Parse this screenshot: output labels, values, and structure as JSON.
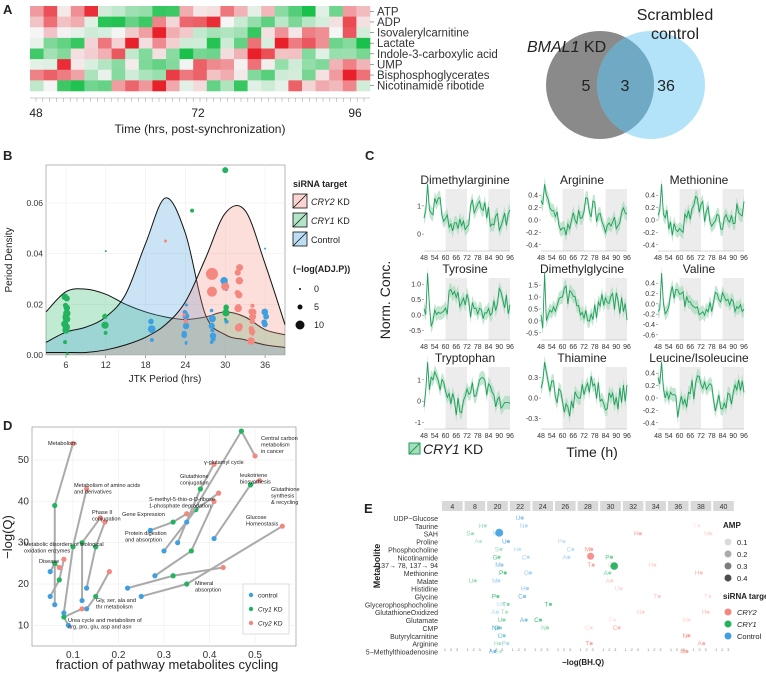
{
  "panelA": {
    "label": "A",
    "metabolites": [
      "ATP",
      "ADP",
      "Isovalerylcarnitine",
      "Lactate",
      "Indole-3-carboxylic acid",
      "UMP",
      "Bisphosphoglycerates",
      "Nicotinamide ribotide"
    ],
    "ticks": [
      "48",
      "72",
      "96"
    ],
    "xlabel": "Time (hrs, post-synchronization)",
    "colors": {
      "up": "#e8202a",
      "mid": "#f5f5f5",
      "down": "#19c04a"
    }
  },
  "venn": {
    "left_title": "BMAL1",
    "left_suffix": " KD",
    "right_title_1": "Scrambled",
    "right_title_2": "control",
    "left_only": "5",
    "overlap": "3",
    "right_only": "36",
    "left_color": "#8a8a8a",
    "right_color": "#a6def7"
  },
  "panelB": {
    "label": "B",
    "chart_data": {
      "type": "scatter",
      "xlabel": "JTK Period (hrs)",
      "ylabel": "Period Density",
      "x_ticks": [
        "6",
        "12",
        "18",
        "24",
        "30",
        "36"
      ],
      "y_ticks": [
        "0.00",
        "0.02",
        "0.04",
        "0.06"
      ],
      "xlim": [
        3,
        39
      ],
      "ylim": [
        0,
        0.075
      ],
      "legend_title": "siRNA target",
      "legend": [
        {
          "gene": "CRY2",
          "suffix": " KD",
          "color": "#f4877f"
        },
        {
          "gene": "CRY1",
          "suffix": "  KD",
          "color": "#22b35e"
        },
        {
          "gene": "",
          "suffix": "Control",
          "color": "#3f9fe0"
        }
      ],
      "size_title": "(−log(ADJ.P))",
      "size_labels": [
        "0",
        "5",
        "10"
      ],
      "density_series": [
        {
          "name": "CRY1",
          "color": "#22b35e",
          "x": [
            3,
            6,
            9,
            12,
            15,
            18,
            21,
            24,
            27,
            30,
            33,
            36,
            39
          ],
          "y": [
            0.017,
            0.025,
            0.026,
            0.024,
            0.02,
            0.017,
            0.015,
            0.014,
            0.015,
            0.017,
            0.015,
            0.01,
            0.008
          ]
        },
        {
          "name": "Control",
          "color": "#3f9fe0",
          "x": [
            3,
            6,
            9,
            12,
            15,
            18,
            21,
            24,
            27,
            30,
            33,
            36,
            39
          ],
          "y": [
            0.005,
            0.009,
            0.011,
            0.015,
            0.024,
            0.044,
            0.062,
            0.048,
            0.016,
            0.008,
            0.006,
            0.004,
            0.003
          ]
        },
        {
          "name": "CRY2",
          "color": "#f4877f",
          "x": [
            3,
            6,
            9,
            12,
            15,
            18,
            21,
            24,
            27,
            30,
            33,
            36,
            39
          ],
          "y": [
            0.001,
            0.001,
            0.001,
            0.002,
            0.004,
            0.007,
            0.012,
            0.021,
            0.038,
            0.056,
            0.057,
            0.036,
            0.012
          ]
        }
      ]
    }
  },
  "panelC": {
    "label": "C",
    "ylabel": "Norm. Conc.",
    "xlabel": "Time (h)",
    "legend_gene": "CRY1",
    "legend_suffix": " KD",
    "x_ticks": [
      "48",
      "54",
      "60",
      "66",
      "72",
      "78",
      "84",
      "90",
      "96"
    ],
    "line_color": "#1e9e5a",
    "ribbon_color": "#a8dcbc",
    "plots": [
      {
        "title": "Dimethylarginine",
        "yticks": [
          "1",
          "0"
        ],
        "ylim": [
          -0.6,
          1.6
        ],
        "tickvals": [
          1,
          0
        ]
      },
      {
        "title": "Arginine",
        "yticks": [
          "0.4",
          "0.2",
          "0.0",
          "-0.2",
          "-0.4"
        ],
        "ylim": [
          -0.5,
          0.5
        ],
        "tickvals": [
          0.4,
          0.2,
          0,
          -0.2,
          -0.4
        ]
      },
      {
        "title": "Methionine",
        "yticks": [
          "0.4",
          "0.2",
          "0.0",
          "-0.2",
          "-0.4"
        ],
        "ylim": [
          -0.5,
          0.5
        ],
        "tickvals": [
          0.4,
          0.2,
          0,
          -0.2,
          -0.4
        ]
      },
      {
        "title": "Tyrosine",
        "yticks": [
          "1.0",
          "0.5",
          "0.0",
          "-0.5"
        ],
        "ylim": [
          -0.8,
          1.2
        ],
        "tickvals": [
          1,
          0.5,
          0,
          -0.5
        ]
      },
      {
        "title": "Dimethylglycine",
        "yticks": [
          "1.5",
          "1.0",
          "0.5",
          "0.0",
          "-0.5"
        ],
        "ylim": [
          -0.8,
          1.8
        ],
        "tickvals": [
          1.5,
          1,
          0.5,
          0,
          -0.5
        ]
      },
      {
        "title": "Valine",
        "yticks": [
          "0.4",
          "0.2",
          "0.0",
          "-0.2",
          "-0.4",
          "-0.6"
        ],
        "ylim": [
          -0.7,
          0.5
        ],
        "tickvals": [
          0.4,
          0.2,
          0,
          -0.2,
          -0.4,
          -0.6
        ]
      },
      {
        "title": "Tryptophan",
        "yticks": [
          "1",
          "0",
          "-1"
        ],
        "ylim": [
          -1.3,
          1.6
        ],
        "tickvals": [
          1,
          0,
          -1
        ]
      },
      {
        "title": "Thiamine",
        "yticks": [
          "0.3",
          "0.0",
          "-0.3"
        ],
        "ylim": [
          -0.45,
          0.45
        ],
        "tickvals": [
          0.3,
          0,
          -0.3
        ]
      },
      {
        "title": "Leucine/Isoleucine",
        "yticks": [
          "0.4",
          "0.2",
          "0.0",
          "-0.2",
          "-0.4"
        ],
        "ylim": [
          -0.5,
          0.5
        ],
        "tickvals": [
          0.4,
          0.2,
          0,
          -0.2,
          -0.4
        ]
      }
    ]
  },
  "panelD": {
    "label": "D",
    "chart_data": {
      "type": "scatter",
      "xlabel": "fraction of pathway metabolites cycling",
      "ylabel": "−log(Q)",
      "x_ticks": [
        "0.1",
        "0.2",
        "0.3",
        "0.4",
        "0.5"
      ],
      "y_ticks": [
        "10",
        "20",
        "30",
        "40",
        "50"
      ],
      "xlim": [
        0.01,
        0.59
      ],
      "ylim": [
        5,
        58
      ],
      "legend": [
        {
          "name": "control",
          "color": "#3f9fe0",
          "italic": false
        },
        {
          "name": "Cry1",
          "suffix": " KD",
          "color": "#22b35e",
          "italic": true
        },
        {
          "name": "Cry2",
          "suffix": " KD",
          "color": "#f4877f",
          "italic": true
        }
      ],
      "annotations": [
        "Metabolism",
        "Metabolism of amino acids and derivatives",
        "Phase II conjugation",
        "Gene Expression",
        "Protein digestion and absorption",
        "Metabolic disorders of biological oxidation enzymes",
        "Disease",
        "Gly, ser, ala and thr metabolism",
        "Urea cycle and metabolism of arg, pro, glu, asp and asn",
        "γ-glutamyl cycle",
        "Glutathione conjugation",
        "S-methyl-5-thio-α-D-ribose 1-phosphate degradation",
        "Mineral absorption",
        "Central carbon metabolism in cancer",
        "leukotriene biosynthesis",
        "Glutathione synthesis & recycling",
        "Glucose Homeostasis"
      ],
      "groups": [
        {
          "label_index": 0,
          "points": [
            {
              "x": 0.06,
              "y": 15,
              "g": "control"
            },
            {
              "x": 0.06,
              "y": 39,
              "g": "Cry1"
            },
            {
              "x": 0.1,
              "y": 54,
              "g": "Cry2"
            }
          ]
        },
        {
          "label_index": 1,
          "points": [
            {
              "x": 0.08,
              "y": 13,
              "g": "control"
            },
            {
              "x": 0.1,
              "y": 29,
              "g": "Cry1"
            },
            {
              "x": 0.13,
              "y": 43,
              "g": "Cry2"
            }
          ]
        },
        {
          "label_index": 2,
          "points": [
            {
              "x": 0.12,
              "y": 16,
              "g": "control"
            },
            {
              "x": 0.12,
              "y": 30,
              "g": "Cry1"
            },
            {
              "x": 0.16,
              "y": 36,
              "g": "Cry2"
            }
          ]
        },
        {
          "label_index": 3,
          "points": [
            {
              "x": 0.13,
              "y": 19,
              "g": "control"
            },
            {
              "x": 0.15,
              "y": 29,
              "g": "Cry1"
            },
            {
              "x": 0.17,
              "y": 35,
              "g": "Cry2"
            }
          ]
        },
        {
          "label_index": 5,
          "points": [
            {
              "x": 0.05,
              "y": 17,
              "g": "control"
            },
            {
              "x": 0.07,
              "y": 21,
              "g": "Cry1"
            },
            {
              "x": 0.08,
              "y": 26,
              "g": "Cry2"
            }
          ]
        },
        {
          "label_index": 6,
          "points": [
            {
              "x": 0.05,
              "y": 23,
              "g": "control"
            },
            {
              "x": 0.06,
              "y": 25,
              "g": "Cry1"
            },
            {
              "x": 0.07,
              "y": 24,
              "g": "Cry2"
            }
          ]
        },
        {
          "label_index": 7,
          "points": [
            {
              "x": 0.13,
              "y": 14,
              "g": "control"
            },
            {
              "x": 0.15,
              "y": 17,
              "g": "Cry1"
            },
            {
              "x": 0.18,
              "y": 23,
              "g": "Cry2"
            }
          ]
        },
        {
          "label_index": 8,
          "points": [
            {
              "x": 0.09,
              "y": 10,
              "g": "control"
            },
            {
              "x": 0.08,
              "y": 12,
              "g": "Cry1"
            },
            {
              "x": 0.12,
              "y": 14,
              "g": "Cry2"
            }
          ]
        },
        {
          "label_index": 9,
          "points": [
            {
              "x": 0.33,
              "y": 30,
              "g": "control"
            },
            {
              "x": 0.38,
              "y": 43,
              "g": "Cry1"
            },
            {
              "x": 0.41,
              "y": 49,
              "g": "Cry2"
            }
          ]
        },
        {
          "label_index": 10,
          "points": [
            {
              "x": 0.3,
              "y": 28,
              "g": "control"
            },
            {
              "x": 0.37,
              "y": 38,
              "g": "Cry1"
            },
            {
              "x": 0.42,
              "y": 42,
              "g": "Cry2"
            }
          ]
        },
        {
          "label_index": 11,
          "points": [
            {
              "x": 0.27,
              "y": 33,
              "g": "control"
            },
            {
              "x": 0.32,
              "y": 35,
              "g": "Cry1"
            },
            {
              "x": 0.35,
              "y": 37,
              "g": "Cry2"
            }
          ]
        },
        {
          "label_index": 12,
          "points": [
            {
              "x": 0.22,
              "y": 19,
              "g": "control"
            },
            {
              "x": 0.32,
              "y": 22,
              "g": "Cry1"
            },
            {
              "x": 0.43,
              "y": 24,
              "g": "Cry2"
            }
          ]
        },
        {
          "label_index": 13,
          "points": [
            {
              "x": 0.35,
              "y": 35,
              "g": "control"
            },
            {
              "x": 0.47,
              "y": 57,
              "g": "Cry1"
            },
            {
              "x": 0.5,
              "y": 51,
              "g": "Cry2"
            }
          ]
        },
        {
          "label_index": 14,
          "points": [
            {
              "x": 0.28,
              "y": 22,
              "g": "control"
            },
            {
              "x": 0.36,
              "y": 28,
              "g": "Cry1"
            },
            {
              "x": 0.41,
              "y": 40,
              "g": "Cry2"
            }
          ]
        },
        {
          "label_index": 15,
          "points": [
            {
              "x": 0.41,
              "y": 31,
              "g": "control"
            },
            {
              "x": 0.49,
              "y": 44,
              "g": "Cry1"
            },
            {
              "x": 0.51,
              "y": 45,
              "g": "Cry2"
            }
          ]
        },
        {
          "label_index": 16,
          "points": [
            {
              "x": 0.25,
              "y": 17,
              "g": "control"
            },
            {
              "x": 0.35,
              "y": 20,
              "g": "Cry1"
            },
            {
              "x": 0.56,
              "y": 34,
              "g": "Cry2"
            }
          ]
        }
      ]
    }
  },
  "panelE": {
    "label": "E",
    "ylabel": "Metabolite",
    "xlabel": "−log(BH.Q)",
    "periods": [
      "4",
      "8",
      "20",
      "22",
      "24",
      "26",
      "28",
      "30",
      "32",
      "34",
      "36",
      "38",
      "40"
    ],
    "metabolites": [
      "UDP−Glucose",
      "Taurine",
      "SAH",
      "Proline",
      "Phosphocholine",
      "Nicotinamide",
      "137→ 78, 137→ 94",
      "Methionine",
      "Malate",
      "Histidine",
      "Glycine",
      "Glycerophosphocholine",
      "GlutathioneOxidized",
      "Glutamate",
      "CMP",
      "Butyrylcarnitine",
      "Arginine",
      "5−Methylthioadenosine"
    ],
    "amp_title": "AMP",
    "amp_labels": [
      "0.1",
      "0.2",
      "0.3",
      "0.4"
    ],
    "target_title": "siRNA target",
    "targets": [
      {
        "name": "CRY2",
        "color": "#f4877f",
        "italic": true
      },
      {
        "name": "CRY1",
        "color": "#22b35e",
        "italic": true
      },
      {
        "name": "Control",
        "color": "#3f9fe0",
        "italic": false
      }
    ]
  }
}
